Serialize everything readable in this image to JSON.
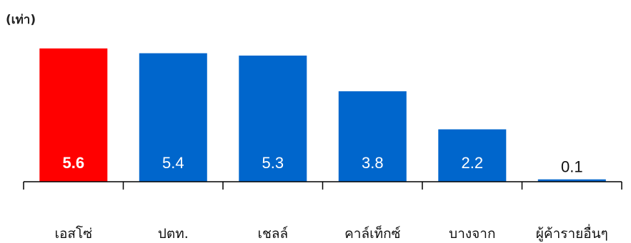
{
  "chart_data": {
    "type": "bar",
    "unit_label": "(เท่า)",
    "categories": [
      "เอสโซ่",
      "ปตท.",
      "เชลล์",
      "คาล์เท็กซ์",
      "บางจาก",
      "ผู้ค้ารายอื่นๆ"
    ],
    "values": [
      5.6,
      5.4,
      5.3,
      3.8,
      2.2,
      0.1
    ],
    "value_labels": [
      "5.6",
      "5.4",
      "5.3",
      "3.8",
      "2.2",
      "0.1"
    ],
    "highlight_index": 0,
    "ylim": [
      0,
      5.6
    ],
    "grid": false,
    "legend": "none",
    "colors": {
      "highlight": "#ff0000",
      "bar": "#0066cc",
      "label_on_bar": "#ffffff",
      "label_outside": "#111111",
      "axis": "#000000"
    }
  }
}
